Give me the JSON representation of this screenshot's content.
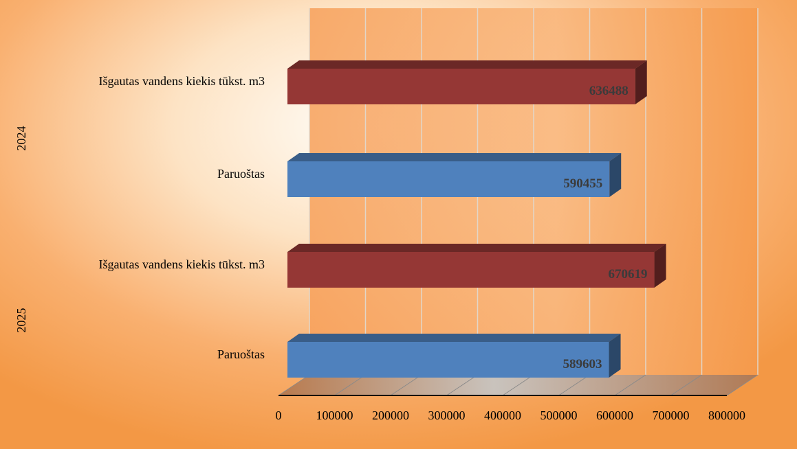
{
  "chart_data": {
    "type": "bar",
    "orientation": "horizontal",
    "style": "3d",
    "groups": [
      {
        "label": "2024",
        "bars": [
          {
            "category": "Išgautas vandens kiekis tūkst. m3",
            "value": 636488,
            "color": "#953735"
          },
          {
            "category": "Paruoštas",
            "value": 590455,
            "color": "#4f81bd"
          }
        ]
      },
      {
        "label": "2025",
        "bars": [
          {
            "category": "Išgautas vandens kiekis tūkst. m3",
            "value": 670619,
            "color": "#953735"
          },
          {
            "category": "Paruoštas",
            "value": 589603,
            "color": "#4f81bd"
          }
        ]
      }
    ],
    "xlim": [
      0,
      800000
    ],
    "xticks": [
      "0",
      "100000",
      "200000",
      "300000",
      "400000",
      "500000",
      "600000",
      "700000",
      "800000"
    ],
    "grid": true,
    "data_labels": true
  }
}
